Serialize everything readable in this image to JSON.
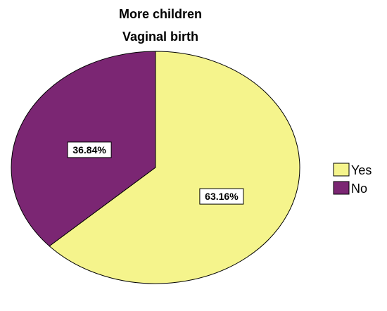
{
  "chart_data": {
    "type": "pie",
    "title": "More children",
    "subtitle": "Vaginal birth",
    "slices": [
      {
        "name": "Yes",
        "value": 63.16,
        "label": "63.16%",
        "color": "#f5f48c"
      },
      {
        "name": "No",
        "value": 36.84,
        "label": "36.84%",
        "color": "#7b2673"
      }
    ],
    "legend": {
      "placement": "right",
      "entries": [
        "Yes",
        "No"
      ]
    },
    "start_direction": "top",
    "clockwise": true
  }
}
